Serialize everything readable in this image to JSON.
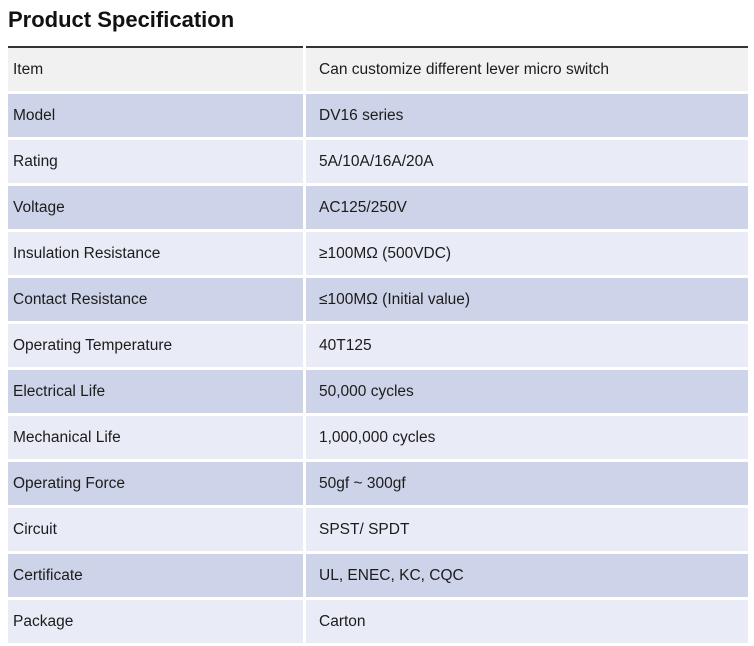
{
  "page": {
    "title": "Product Specification"
  },
  "colors": {
    "header_row_bg": "#f1f1f1",
    "dark_row_bg": "#cdd3e8",
    "light_row_bg": "#e9ebf6",
    "top_border": "#333333",
    "text": "#1c1c1c",
    "background": "#ffffff"
  },
  "table": {
    "rows": [
      {
        "label": "Item",
        "value": "Can customize different lever micro switch"
      },
      {
        "label": "Model",
        "value": "DV16 series"
      },
      {
        "label": "Rating",
        "value": "5A/10A/16A/20A"
      },
      {
        "label": "Voltage",
        "value": "AC125/250V"
      },
      {
        "label": "Insulation Resistance",
        "value": "≥100MΩ (500VDC)"
      },
      {
        "label": "Contact Resistance",
        "value": "≤100MΩ (Initial value)"
      },
      {
        "label": "Operating Temperature",
        "value": "40T125"
      },
      {
        "label": "Electrical Life",
        "value": "50,000 cycles"
      },
      {
        "label": "Mechanical Life",
        "value": "1,000,000 cycles"
      },
      {
        "label": "Operating Force",
        "value": "50gf ~ 300gf"
      },
      {
        "label": "Circuit",
        "value": "SPST/ SPDT"
      },
      {
        "label": "Certificate",
        "value": "UL, ENEC, KC, CQC"
      },
      {
        "label": "Package",
        "value": "Carton"
      }
    ]
  }
}
